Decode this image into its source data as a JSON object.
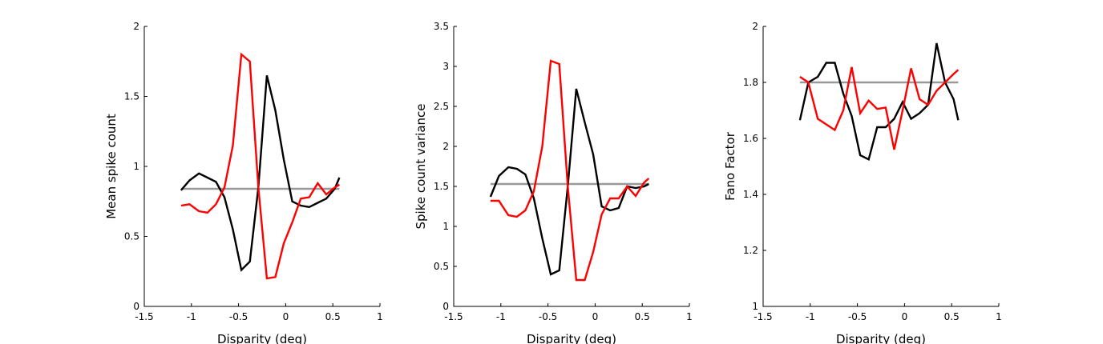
{
  "chart_data": [
    {
      "type": "line",
      "xlabel": "Disparity (deg)",
      "ylabel": "Mean spike count",
      "xlim": [
        -1.5,
        1
      ],
      "ylim": [
        0,
        2
      ],
      "xticks": [
        "-1.5",
        "-1",
        "-0.5",
        "0",
        "0.5",
        "1"
      ],
      "yticks": [
        "0",
        "0.5",
        "1",
        "1.5",
        "2"
      ],
      "grid": false,
      "series": [
        {
          "color": "#000000",
          "x": [
            -1.11,
            -1.02,
            -0.92,
            -0.83,
            -0.74,
            -0.65,
            -0.56,
            -0.47,
            -0.38,
            -0.29,
            -0.2,
            -0.11,
            -0.02,
            0.07,
            0.16,
            0.25,
            0.34,
            0.43,
            0.52,
            0.57
          ],
          "y": [
            0.83,
            0.9,
            0.95,
            0.92,
            0.89,
            0.78,
            0.55,
            0.26,
            0.32,
            0.85,
            1.65,
            1.4,
            1.05,
            0.75,
            0.72,
            0.71,
            0.74,
            0.77,
            0.84,
            0.92
          ]
        },
        {
          "color": "#ff0000",
          "x": [
            -1.11,
            -1.02,
            -0.92,
            -0.83,
            -0.74,
            -0.65,
            -0.56,
            -0.47,
            -0.38,
            -0.29,
            -0.2,
            -0.11,
            -0.02,
            0.07,
            0.16,
            0.25,
            0.34,
            0.43,
            0.52,
            0.57
          ],
          "y": [
            0.72,
            0.73,
            0.68,
            0.67,
            0.73,
            0.85,
            1.15,
            1.8,
            1.75,
            0.85,
            0.2,
            0.21,
            0.45,
            0.6,
            0.77,
            0.78,
            0.88,
            0.8,
            0.85,
            0.87
          ]
        },
        {
          "color": "#999999",
          "x": [
            -1.11,
            0.57
          ],
          "y": [
            0.84,
            0.84
          ]
        }
      ]
    },
    {
      "type": "line",
      "xlabel": "Disparity (deg)",
      "ylabel": "Spike count variance",
      "xlim": [
        -1.5,
        1
      ],
      "ylim": [
        0,
        3.5
      ],
      "xticks": [
        "-1.5",
        "-1",
        "-0.5",
        "0",
        "0.5",
        "1"
      ],
      "yticks": [
        "0",
        "0.5",
        "1",
        "1.5",
        "2",
        "2.5",
        "3",
        "3.5"
      ],
      "grid": false,
      "series": [
        {
          "color": "#000000",
          "x": [
            -1.11,
            -1.02,
            -0.92,
            -0.83,
            -0.74,
            -0.65,
            -0.56,
            -0.47,
            -0.38,
            -0.29,
            -0.2,
            -0.11,
            -0.02,
            0.07,
            0.16,
            0.25,
            0.34,
            0.43,
            0.52,
            0.57
          ],
          "y": [
            1.37,
            1.63,
            1.74,
            1.72,
            1.65,
            1.35,
            0.85,
            0.4,
            0.45,
            1.5,
            2.72,
            2.3,
            1.9,
            1.25,
            1.2,
            1.23,
            1.5,
            1.48,
            1.5,
            1.53
          ]
        },
        {
          "color": "#ff0000",
          "x": [
            -1.11,
            -1.02,
            -0.92,
            -0.83,
            -0.74,
            -0.65,
            -0.56,
            -0.47,
            -0.38,
            -0.29,
            -0.2,
            -0.11,
            -0.02,
            0.07,
            0.16,
            0.25,
            0.34,
            0.43,
            0.52,
            0.57
          ],
          "y": [
            1.32,
            1.32,
            1.14,
            1.12,
            1.2,
            1.44,
            2.0,
            3.07,
            3.03,
            1.5,
            0.33,
            0.33,
            0.68,
            1.15,
            1.35,
            1.35,
            1.5,
            1.38,
            1.55,
            1.6
          ]
        },
        {
          "color": "#999999",
          "x": [
            -1.11,
            0.57
          ],
          "y": [
            1.53,
            1.53
          ]
        }
      ]
    },
    {
      "type": "line",
      "xlabel": "Disparity (deg)",
      "ylabel": "Fano Factor",
      "xlim": [
        -1.5,
        1
      ],
      "ylim": [
        1,
        2
      ],
      "xticks": [
        "-1.5",
        "-1",
        "-0.5",
        "0",
        "0.5",
        "1"
      ],
      "yticks": [
        "1",
        "1.2",
        "1.4",
        "1.6",
        "1.8",
        "2"
      ],
      "grid": false,
      "series": [
        {
          "color": "#000000",
          "x": [
            -1.11,
            -1.02,
            -0.92,
            -0.83,
            -0.74,
            -0.65,
            -0.56,
            -0.47,
            -0.38,
            -0.29,
            -0.2,
            -0.11,
            -0.02,
            0.07,
            0.16,
            0.25,
            0.34,
            0.43,
            0.52,
            0.57
          ],
          "y": [
            1.665,
            1.8,
            1.82,
            1.87,
            1.87,
            1.76,
            1.68,
            1.54,
            1.525,
            1.64,
            1.64,
            1.67,
            1.73,
            1.67,
            1.69,
            1.72,
            1.94,
            1.8,
            1.74,
            1.665
          ]
        },
        {
          "color": "#ff0000",
          "x": [
            -1.11,
            -1.02,
            -0.92,
            -0.83,
            -0.74,
            -0.65,
            -0.56,
            -0.47,
            -0.38,
            -0.29,
            -0.2,
            -0.11,
            -0.02,
            0.07,
            0.16,
            0.25,
            0.34,
            0.43,
            0.52,
            0.57
          ],
          "y": [
            1.82,
            1.8,
            1.67,
            1.65,
            1.63,
            1.7,
            1.855,
            1.69,
            1.735,
            1.705,
            1.71,
            1.56,
            1.7,
            1.85,
            1.74,
            1.72,
            1.77,
            1.8,
            1.83,
            1.845
          ]
        },
        {
          "color": "#999999",
          "x": [
            -1.11,
            0.57
          ],
          "y": [
            1.8,
            1.8
          ]
        }
      ]
    }
  ]
}
